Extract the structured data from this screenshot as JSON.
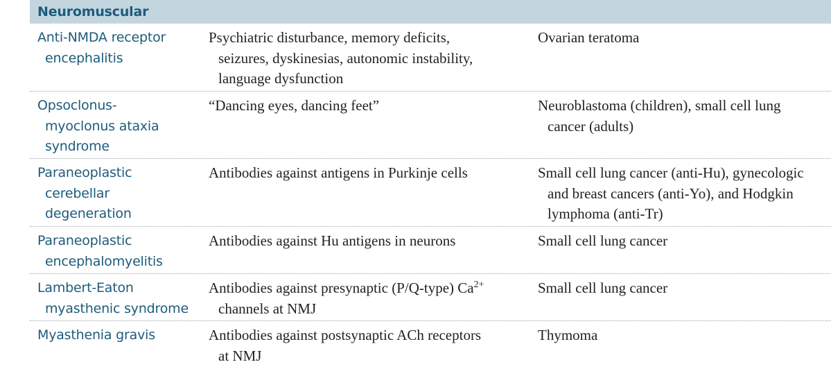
{
  "section": {
    "title": "Neuromuscular"
  },
  "rows": [
    {
      "disorder": [
        "Anti-NMDA receptor",
        "encephalitis"
      ],
      "features": [
        "Psychiatric disturbance, memory deficits,",
        "seizures, dyskinesias, autonomic instability,",
        "language dysfunction"
      ],
      "associations": [
        "Ovarian teratoma"
      ]
    },
    {
      "disorder": [
        "Opsoclonus-",
        "myoclonus ataxia",
        "syndrome"
      ],
      "features": [
        "“Dancing eyes, dancing feet”"
      ],
      "associations": [
        "Neuroblastoma (children), small cell lung",
        "cancer (adults)"
      ]
    },
    {
      "disorder": [
        "Paraneoplastic",
        "cerebellar",
        "degeneration"
      ],
      "features": [
        "Antibodies against antigens in Purkinje cells"
      ],
      "associations": [
        "Small cell lung cancer (anti-Hu), gynecologic",
        "and breast cancers (anti-Yo), and Hodgkin",
        "lymphoma (anti-Tr)"
      ]
    },
    {
      "disorder": [
        "Paraneoplastic",
        "encephalomyelitis"
      ],
      "features": [
        "Antibodies against Hu antigens in neurons"
      ],
      "associations": [
        "Small cell lung cancer"
      ]
    },
    {
      "disorder": [
        "Lambert-Eaton",
        "myasthenic syndrome"
      ],
      "features_prefix": "Antibodies against presynaptic (P/Q-type) Ca",
      "features_sup": "2+",
      "features_cont": "channels at NMJ",
      "associations": [
        "Small cell lung cancer"
      ]
    },
    {
      "disorder": [
        "Myasthenia gravis"
      ],
      "features": [
        "Antibodies against postsynaptic ACh receptors",
        "at NMJ"
      ],
      "associations": [
        "Thymoma"
      ]
    }
  ]
}
